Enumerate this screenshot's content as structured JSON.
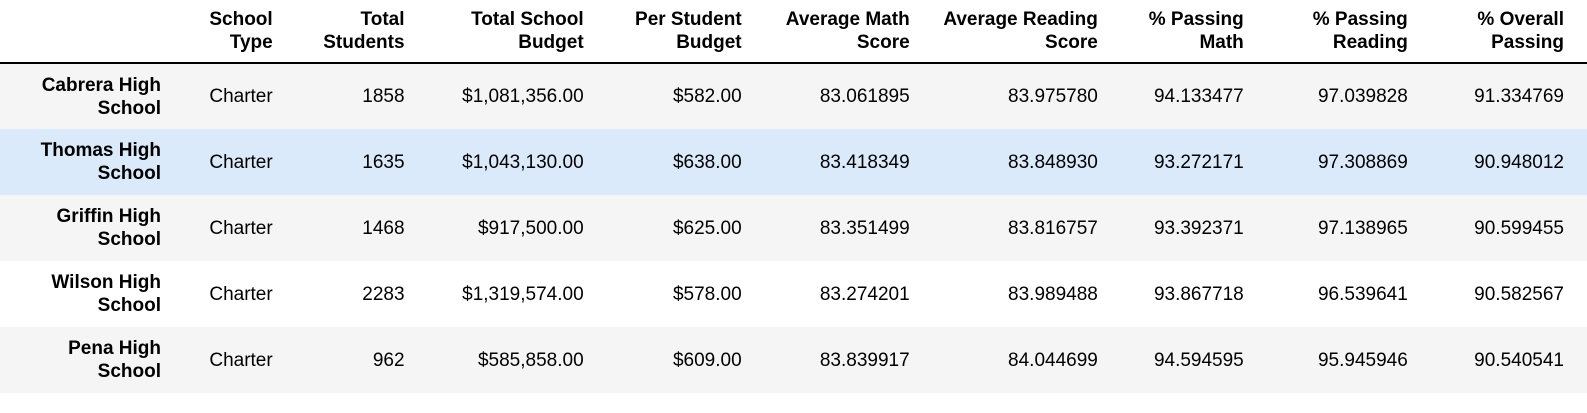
{
  "table": {
    "columns": [
      "",
      "School Type",
      "Total Students",
      "Total School Budget",
      "Per Student Budget",
      "Average Math Score",
      "Average Reading Score",
      "% Passing Math",
      "% Passing Reading",
      "% Overall Passing"
    ],
    "column_lines": [
      [
        "",
        ""
      ],
      [
        "School",
        "Type"
      ],
      [
        "Total",
        "Students"
      ],
      [
        "Total School",
        "Budget"
      ],
      [
        "Per Student",
        "Budget"
      ],
      [
        "Average Math",
        "Score"
      ],
      [
        "Average Reading",
        "Score"
      ],
      [
        "% Passing",
        "Math"
      ],
      [
        "% Passing",
        "Reading"
      ],
      [
        "% Overall",
        "Passing"
      ]
    ],
    "rows": [
      {
        "name_lines": [
          "Cabrera High",
          "School"
        ],
        "cells": [
          "Charter",
          "1858",
          "$1,081,356.00",
          "$582.00",
          "83.061895",
          "83.975780",
          "94.133477",
          "97.039828",
          "91.334769"
        ]
      },
      {
        "name_lines": [
          "Thomas High",
          "School"
        ],
        "cells": [
          "Charter",
          "1635",
          "$1,043,130.00",
          "$638.00",
          "83.418349",
          "83.848930",
          "93.272171",
          "97.308869",
          "90.948012"
        ]
      },
      {
        "name_lines": [
          "Griffin High",
          "School"
        ],
        "cells": [
          "Charter",
          "1468",
          "$917,500.00",
          "$625.00",
          "83.351499",
          "83.816757",
          "93.392371",
          "97.138965",
          "90.599455"
        ]
      },
      {
        "name_lines": [
          "Wilson High",
          "School"
        ],
        "cells": [
          "Charter",
          "2283",
          "$1,319,574.00",
          "$578.00",
          "83.274201",
          "83.989488",
          "93.867718",
          "96.539641",
          "90.582567"
        ]
      },
      {
        "name_lines": [
          "Pena High",
          "School"
        ],
        "cells": [
          "Charter",
          "962",
          "$585,858.00",
          "$609.00",
          "83.839917",
          "84.044699",
          "94.594595",
          "95.945946",
          "90.540541"
        ]
      }
    ]
  }
}
